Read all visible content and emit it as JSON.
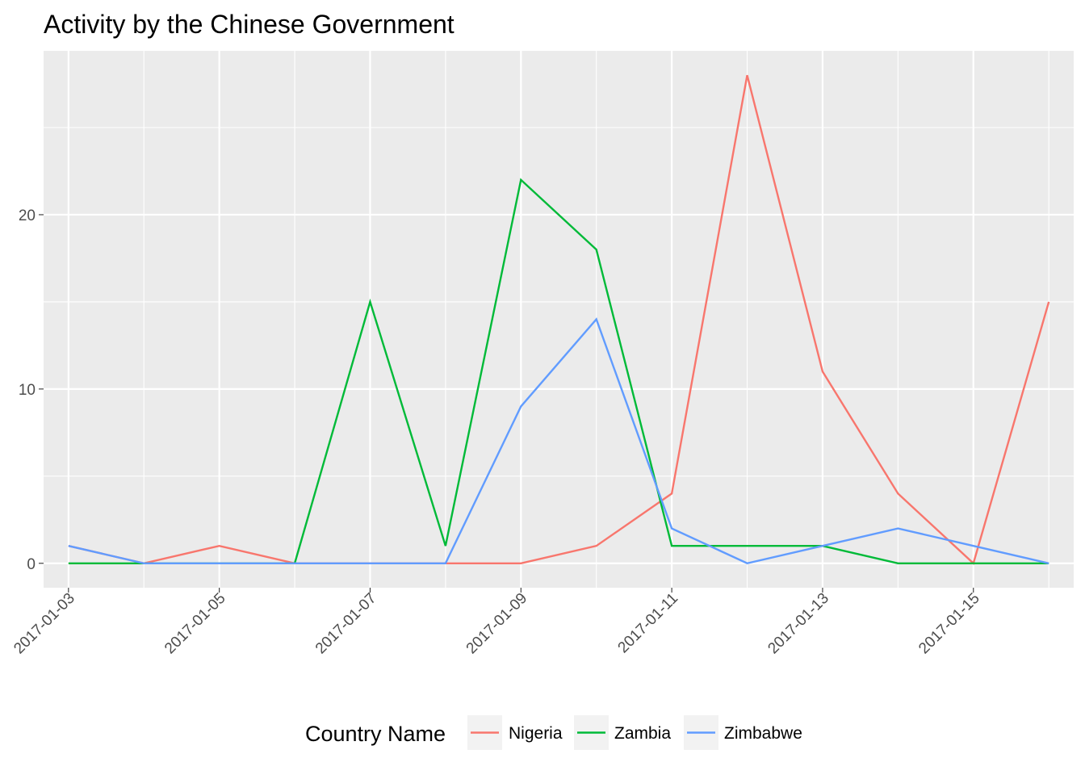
{
  "chart_data": {
    "type": "line",
    "title": "Activity by the Chinese Government",
    "xlabel": "",
    "ylabel": "",
    "x": [
      "2017-01-03",
      "2017-01-04",
      "2017-01-05",
      "2017-01-06",
      "2017-01-07",
      "2017-01-08",
      "2017-01-09",
      "2017-01-10",
      "2017-01-11",
      "2017-01-12",
      "2017-01-13",
      "2017-01-14",
      "2017-01-15",
      "2017-01-16"
    ],
    "x_tick_labels": [
      "2017-01-03",
      "2017-01-05",
      "2017-01-07",
      "2017-01-09",
      "2017-01-11",
      "2017-01-13",
      "2017-01-15"
    ],
    "y_ticks": [
      0,
      10,
      20
    ],
    "xlim": [
      "2017-01-02.67",
      "2017-01-16.33"
    ],
    "ylim": [
      -1.4,
      29.4
    ],
    "grid": true,
    "legend": {
      "title": "Country Name",
      "position": "bottom"
    },
    "series": [
      {
        "name": "Nigeria",
        "color": "#F8766D",
        "values": [
          1,
          0,
          1,
          0,
          0,
          0,
          0,
          1,
          4,
          28,
          11,
          4,
          0,
          15
        ]
      },
      {
        "name": "Zambia",
        "color": "#00BA38",
        "values": [
          0,
          0,
          0,
          0,
          15,
          1,
          22,
          18,
          1,
          1,
          1,
          0,
          0,
          0
        ]
      },
      {
        "name": "Zimbabwe",
        "color": "#619CFF",
        "values": [
          1,
          0,
          0,
          0,
          0,
          0,
          9,
          14,
          2,
          0,
          1,
          2,
          1,
          0
        ]
      }
    ]
  }
}
